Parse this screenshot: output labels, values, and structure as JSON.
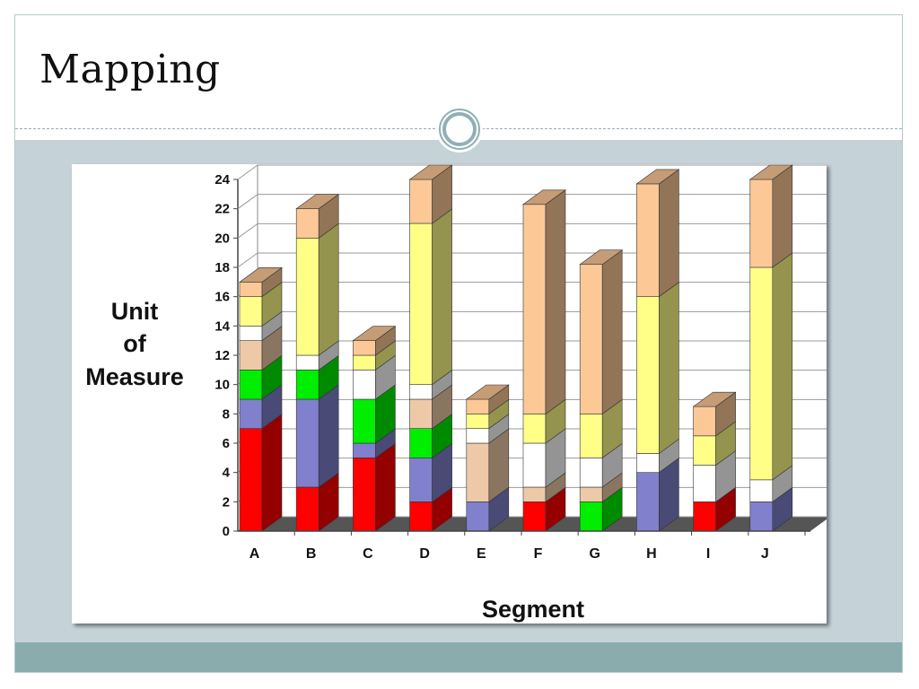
{
  "slide": {
    "title": "Mapping"
  },
  "colors": {
    "background_band": "#c5d2d7",
    "footer_bar": "#8bacad",
    "ornament_ring": "#8fb0b4"
  },
  "chart_data": {
    "type": "bar",
    "stacked": true,
    "style": "3d",
    "xlabel": "Segment",
    "ylabel_lines": [
      "Unit",
      "of",
      "Measure"
    ],
    "ylim": [
      0,
      24
    ],
    "yticks": [
      0,
      2,
      4,
      6,
      8,
      10,
      12,
      14,
      16,
      18,
      20,
      22,
      24
    ],
    "grid": true,
    "categories": [
      "A",
      "B",
      "C",
      "D",
      "E",
      "F",
      "G",
      "H",
      "I",
      "J"
    ],
    "series": [
      {
        "color": "#ff0000",
        "values": [
          7,
          3,
          5,
          2,
          0,
          2,
          0,
          0,
          2,
          0
        ]
      },
      {
        "color": "#8080cc",
        "values": [
          2,
          6,
          1,
          3,
          2,
          0,
          0,
          4,
          0,
          2
        ]
      },
      {
        "color": "#00ee00",
        "values": [
          2,
          2,
          3,
          2,
          0,
          0,
          2,
          0,
          0,
          0
        ]
      },
      {
        "color": "#eec9a8",
        "values": [
          2,
          0,
          0,
          2,
          4,
          1,
          1,
          0,
          0,
          0
        ]
      },
      {
        "color": "#ffffff",
        "values": [
          1,
          1,
          2,
          1,
          1,
          3,
          2,
          1.3,
          2.5,
          1.5
        ]
      },
      {
        "color": "#ffff88",
        "values": [
          2,
          8,
          1,
          11,
          1,
          2,
          3,
          10.7,
          2,
          14.5
        ]
      },
      {
        "color": "#fcc896",
        "values": [
          1,
          2,
          1,
          3,
          1,
          14.3,
          10.2,
          7.7,
          2,
          6
        ]
      }
    ]
  }
}
